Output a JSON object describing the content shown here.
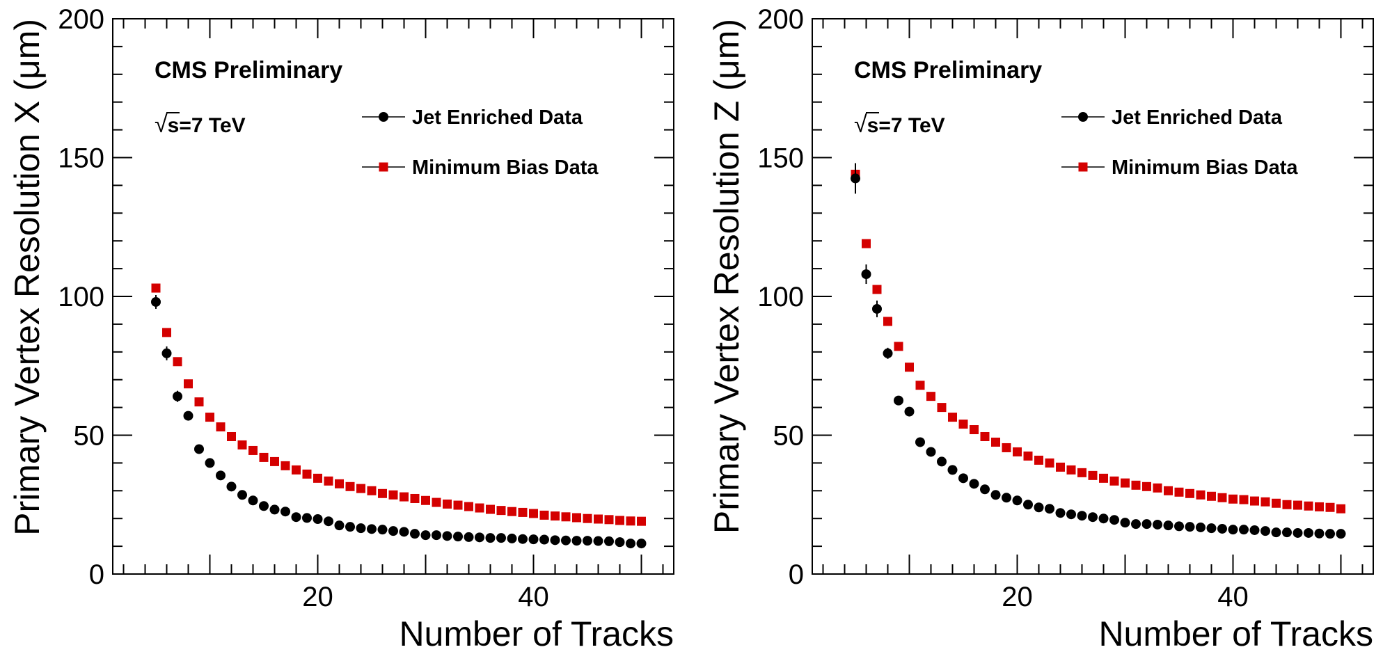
{
  "chart_data": [
    {
      "type": "scatter",
      "panel": "left",
      "ylabel": "Primary Vertex Resolution X (μm)",
      "xlabel": "Number of Tracks",
      "annotation": "CMS Preliminary",
      "energy_radical": "√",
      "energy_label": "s=7 TeV",
      "xlim": [
        1,
        53
      ],
      "ylim": [
        0,
        200
      ],
      "x_ticks": [
        20,
        40
      ],
      "y_ticks": [
        0,
        50,
        100,
        150,
        200
      ],
      "grid": false,
      "legend_position": "top-right",
      "series": [
        {
          "name": "Jet Enriched Data",
          "marker": "circle",
          "color": "#000000",
          "x": [
            5,
            6,
            7,
            8,
            9,
            10,
            11,
            12,
            13,
            14,
            15,
            16,
            17,
            18,
            19,
            20,
            21,
            22,
            23,
            24,
            25,
            26,
            27,
            28,
            29,
            30,
            31,
            32,
            33,
            34,
            35,
            36,
            37,
            38,
            39,
            40,
            41,
            42,
            43,
            44,
            45,
            46,
            47,
            48,
            49,
            50
          ],
          "y": [
            98,
            79.5,
            64,
            57,
            45,
            40,
            35.5,
            31.5,
            28.5,
            26.5,
            24.5,
            23.2,
            22.5,
            20.5,
            20.2,
            19.8,
            19,
            17.5,
            17,
            16.5,
            16.2,
            16,
            15.5,
            15.2,
            14.5,
            14,
            14,
            13.7,
            13.5,
            13.3,
            13.2,
            13,
            13,
            12.8,
            12.6,
            12.5,
            12.4,
            12.2,
            12.1,
            12,
            12,
            11.9,
            11.8,
            11.5,
            11,
            11
          ],
          "err": [
            2.5,
            2.5,
            2,
            0,
            0,
            0,
            0,
            0,
            0,
            0,
            0,
            0,
            0,
            0,
            0,
            0,
            0,
            0,
            0,
            0,
            0,
            0,
            0,
            0,
            0,
            0,
            0,
            0,
            0,
            0,
            0,
            0,
            0,
            0,
            0,
            0,
            0,
            0,
            0,
            0,
            0,
            0,
            0,
            0,
            0,
            0
          ]
        },
        {
          "name": "Minimum Bias Data",
          "marker": "square",
          "color": "#d40000",
          "x": [
            5,
            6,
            7,
            8,
            9,
            10,
            11,
            12,
            13,
            14,
            15,
            16,
            17,
            18,
            19,
            20,
            21,
            22,
            23,
            24,
            25,
            26,
            27,
            28,
            29,
            30,
            31,
            32,
            33,
            34,
            35,
            36,
            37,
            38,
            39,
            40,
            41,
            42,
            43,
            44,
            45,
            46,
            47,
            48,
            49,
            50
          ],
          "y": [
            103,
            87,
            76.5,
            68.5,
            62,
            56.5,
            53,
            49.5,
            46.5,
            44.5,
            42,
            40.5,
            39,
            37.5,
            36,
            34.5,
            33.5,
            32.5,
            31.5,
            30.8,
            30,
            29,
            28.5,
            27.8,
            27.2,
            26.5,
            25.8,
            25.2,
            24.8,
            24.3,
            23.8,
            23.3,
            22.9,
            22.5,
            22.2,
            21.8,
            21.2,
            20.9,
            20.6,
            20.3,
            20,
            19.8,
            19.6,
            19.3,
            19.1,
            19
          ]
        }
      ]
    },
    {
      "type": "scatter",
      "panel": "right",
      "ylabel": "Primary Vertex Resolution Z (μm)",
      "xlabel": "Number of Tracks",
      "annotation": "CMS Preliminary",
      "energy_radical": "√",
      "energy_label": "s=7 TeV",
      "xlim": [
        1,
        53
      ],
      "ylim": [
        0,
        200
      ],
      "x_ticks": [
        20,
        40
      ],
      "y_ticks": [
        0,
        50,
        100,
        150,
        200
      ],
      "grid": false,
      "legend_position": "top-right",
      "series": [
        {
          "name": "Jet Enriched Data",
          "marker": "circle",
          "color": "#000000",
          "x": [
            5,
            6,
            7,
            8,
            9,
            10,
            11,
            12,
            13,
            14,
            15,
            16,
            17,
            18,
            19,
            20,
            21,
            22,
            23,
            24,
            25,
            26,
            27,
            28,
            29,
            30,
            31,
            32,
            33,
            34,
            35,
            36,
            37,
            38,
            39,
            40,
            41,
            42,
            43,
            44,
            45,
            46,
            47,
            48,
            49,
            50
          ],
          "y": [
            142.5,
            108,
            95.5,
            79.5,
            62.5,
            58.5,
            47.5,
            44,
            40.5,
            37.5,
            34.5,
            32.5,
            30.5,
            28.5,
            27.5,
            26.5,
            25,
            24,
            23.5,
            22,
            21.5,
            21,
            20.5,
            20,
            19.5,
            18.5,
            18,
            18,
            17.8,
            17.5,
            17.2,
            17,
            16.8,
            16.5,
            16.3,
            16,
            16,
            15.8,
            15.5,
            15,
            15,
            14.8,
            14.8,
            14.6,
            14.5,
            14.5
          ],
          "err": [
            5.5,
            3.5,
            3,
            2,
            0,
            0,
            0,
            0,
            0,
            0,
            0,
            0,
            0,
            0,
            0,
            0,
            0,
            0,
            0,
            0,
            0,
            0,
            0,
            0,
            0,
            0,
            0,
            0,
            0,
            0,
            0,
            0,
            0,
            0,
            0,
            0,
            0,
            0,
            0,
            0,
            0,
            0,
            0,
            0,
            0,
            0
          ]
        },
        {
          "name": "Minimum Bias Data",
          "marker": "square",
          "color": "#d40000",
          "x": [
            5,
            6,
            7,
            8,
            9,
            10,
            11,
            12,
            13,
            14,
            15,
            16,
            17,
            18,
            19,
            20,
            21,
            22,
            23,
            24,
            25,
            26,
            27,
            28,
            29,
            30,
            31,
            32,
            33,
            34,
            35,
            36,
            37,
            38,
            39,
            40,
            41,
            42,
            43,
            44,
            45,
            46,
            47,
            48,
            49,
            50
          ],
          "y": [
            144,
            119,
            102.5,
            91,
            82,
            74.5,
            68,
            64,
            60,
            56.5,
            54,
            52,
            49.5,
            47.5,
            45.5,
            44,
            42.5,
            41,
            40,
            38.5,
            37.5,
            36.5,
            35.5,
            34.5,
            33.5,
            32.8,
            32,
            31.5,
            31,
            30,
            29.5,
            29,
            28.5,
            28,
            27.5,
            27,
            26.8,
            26.3,
            26,
            25.5,
            25,
            24.8,
            24.5,
            24.2,
            24,
            23.5
          ]
        }
      ]
    }
  ]
}
